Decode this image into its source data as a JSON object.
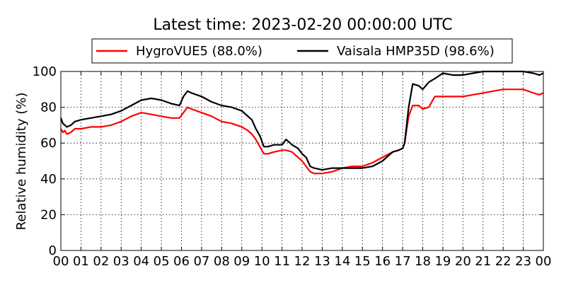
{
  "chart_data": {
    "type": "line",
    "title": "Latest time: 2023-02-20 00:00:00 UTC",
    "xlabel": "",
    "ylabel": "Relative humidity (%)",
    "xlim": [
      0,
      24
    ],
    "ylim": [
      0,
      100
    ],
    "grid": true,
    "legend_position": "top-center, above plot",
    "x_ticks": [
      "00",
      "01",
      "02",
      "03",
      "04",
      "05",
      "06",
      "07",
      "08",
      "09",
      "10",
      "11",
      "12",
      "13",
      "14",
      "15",
      "16",
      "17",
      "18",
      "19",
      "20",
      "21",
      "22",
      "23",
      "00"
    ],
    "y_ticks": [
      0,
      20,
      40,
      60,
      80,
      100
    ],
    "series": [
      {
        "name": "HygroVUE5",
        "legend_label": "HygroVUE5 (88.0%)",
        "color": "#ff0000",
        "x": [
          0,
          0.1,
          0.2,
          0.3,
          0.5,
          0.7,
          1.0,
          1.5,
          2.0,
          2.5,
          3.0,
          3.5,
          4.0,
          4.5,
          5.0,
          5.5,
          5.9,
          6.1,
          6.3,
          6.5,
          7.0,
          7.5,
          8.0,
          8.5,
          9.0,
          9.3,
          9.5,
          9.7,
          9.9,
          10.1,
          10.3,
          10.6,
          11.0,
          11.2,
          11.5,
          11.8,
          12.0,
          12.2,
          12.4,
          12.6,
          13.0,
          13.5,
          14.0,
          14.5,
          15.0,
          15.5,
          16.0,
          16.5,
          16.8,
          17.0,
          17.1,
          17.3,
          17.5,
          17.8,
          18.0,
          18.3,
          18.6,
          19.0,
          19.5,
          20.0,
          20.5,
          21.0,
          21.5,
          22.0,
          22.5,
          23.0,
          23.5,
          23.8,
          24.0
        ],
        "y": [
          68,
          66,
          67,
          65,
          66,
          68,
          68,
          69,
          69,
          70,
          72,
          75,
          77,
          76,
          75,
          74,
          74,
          77,
          80,
          79,
          77,
          75,
          72,
          71,
          69,
          67,
          65,
          62,
          58,
          54,
          54,
          55,
          56,
          56,
          55,
          52,
          50,
          47,
          44,
          43,
          43,
          44,
          46,
          47,
          47,
          49,
          52,
          55,
          56,
          57,
          60,
          75,
          81,
          81,
          79,
          80,
          86,
          86,
          86,
          86,
          87,
          88,
          89,
          90,
          90,
          90,
          88,
          87,
          88
        ]
      },
      {
        "name": "Vaisala HMP35D",
        "legend_label": "Vaisala HMP35D (98.6%)",
        "color": "#000000",
        "x": [
          0,
          0.1,
          0.2,
          0.3,
          0.5,
          0.7,
          1.0,
          1.5,
          2.0,
          2.5,
          3.0,
          3.5,
          4.0,
          4.5,
          5.0,
          5.5,
          5.9,
          6.1,
          6.3,
          6.5,
          7.0,
          7.5,
          8.0,
          8.5,
          9.0,
          9.3,
          9.5,
          9.7,
          9.9,
          10.1,
          10.3,
          10.6,
          11.0,
          11.2,
          11.5,
          11.8,
          12.0,
          12.2,
          12.4,
          12.6,
          13.0,
          13.5,
          14.0,
          14.5,
          15.0,
          15.5,
          16.0,
          16.5,
          16.8,
          17.0,
          17.1,
          17.3,
          17.5,
          17.8,
          18.0,
          18.3,
          18.6,
          19.0,
          19.5,
          20.0,
          20.5,
          21.0,
          21.5,
          22.0,
          22.5,
          23.0,
          23.5,
          23.8,
          24.0
        ],
        "y": [
          74,
          71,
          70,
          69,
          70,
          72,
          73,
          74,
          75,
          76,
          78,
          81,
          84,
          85,
          84,
          82,
          81,
          86,
          89,
          88,
          86,
          83,
          81,
          80,
          78,
          75,
          73,
          68,
          64,
          58,
          58,
          59,
          59,
          62,
          59,
          57,
          54,
          52,
          47,
          46,
          45,
          46,
          46,
          46,
          46,
          47,
          50,
          55,
          56,
          57,
          60,
          80,
          93,
          92,
          90,
          94,
          96,
          99,
          98,
          98,
          99,
          100,
          100,
          100,
          100,
          100,
          99,
          98,
          99
        ]
      }
    ]
  }
}
